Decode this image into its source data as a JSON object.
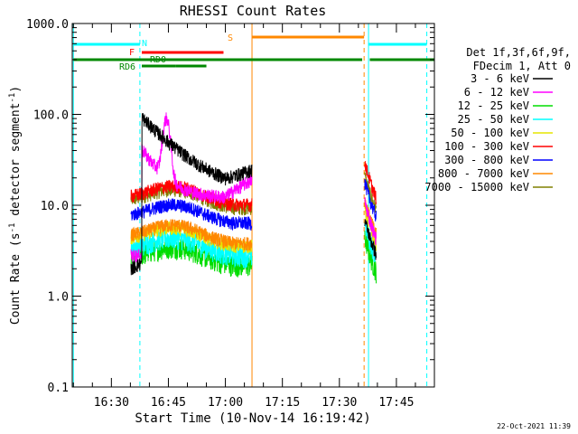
{
  "chart_data": {
    "type": "line",
    "title": "RHESSI Count Rates",
    "xlabel": "Start Time (10-Nov-14 16:19:42)",
    "ylabel_main": "Count Rate (s",
    "ylabel_sup1": "-1",
    "ylabel_mid": " detector segment",
    "ylabel_sup2": "-1",
    "ylabel_end": ")",
    "y_scale": "log",
    "ylim": [
      0.1,
      1000.0
    ],
    "xlim": [
      "16:19:42",
      "17:55:00"
    ],
    "x_ticks": [
      "16:30",
      "16:45",
      "17:00",
      "17:15",
      "17:30",
      "17:45"
    ],
    "y_ticks": [
      "0.1",
      "1.0",
      "10.0",
      "100.0",
      "1000.0"
    ],
    "legend_header": [
      "Det 1f,3f,6f,9f,",
      "FDecim 1, Att 0"
    ],
    "legend_position": "right",
    "series": [
      {
        "name": "3 - 6 keV",
        "color": "#000000"
      },
      {
        "name": "6 - 12 keV",
        "color": "#ff00ff"
      },
      {
        "name": "12 - 25 keV",
        "color": "#00dd00"
      },
      {
        "name": "25 - 50 keV",
        "color": "#00ffff"
      },
      {
        "name": "50 - 100 keV",
        "color": "#e6e600"
      },
      {
        "name": "100 - 300 keV",
        "color": "#ff0000"
      },
      {
        "name": "300 - 800 keV",
        "color": "#0000ff"
      },
      {
        "name": "800 - 7000 keV",
        "color": "#ff8800"
      },
      {
        "name": "7000 - 15000 keV",
        "color": "#808000"
      }
    ],
    "flag_labels": {
      "night": "N",
      "flare": "F",
      "saa": "S",
      "decim": "RD6",
      "decim_off": "RD0"
    },
    "flag_colors": {
      "night": "#00ffff",
      "flare": "#ff0000",
      "saa": "#ff8800",
      "decim": "#008800"
    }
  },
  "timestamp": "22-Oct-2021 11:39"
}
